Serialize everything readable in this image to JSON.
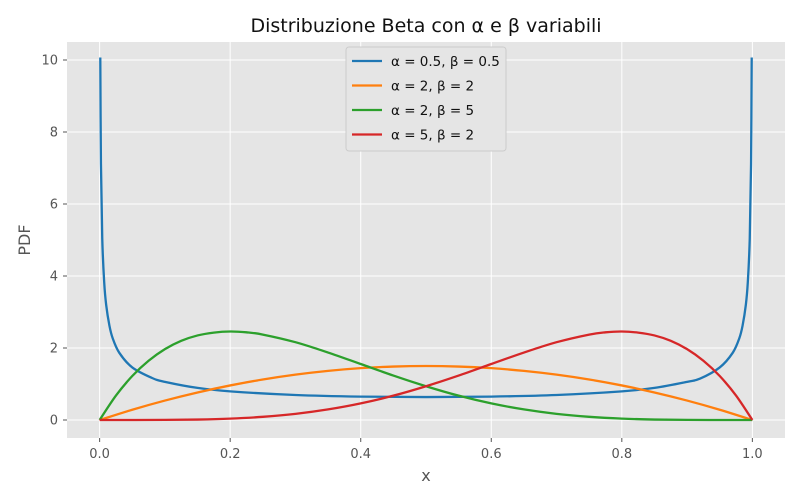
{
  "chart_data": {
    "type": "line",
    "title": "Distribuzione Beta con α e β variabili",
    "xlabel": "x",
    "ylabel": "PDF",
    "xlim": [
      -0.05,
      1.05
    ],
    "ylim": [
      -0.5,
      10.5
    ],
    "xticks": [
      0.0,
      0.2,
      0.4,
      0.6,
      0.8,
      1.0
    ],
    "xtick_labels": [
      "0.0",
      "0.2",
      "0.4",
      "0.6",
      "0.8",
      "1.0"
    ],
    "yticks": [
      0,
      2,
      4,
      6,
      8,
      10
    ],
    "ytick_labels": [
      "0",
      "2",
      "4",
      "6",
      "8",
      "10"
    ],
    "grid": true,
    "legend_position": "top-center",
    "series": [
      {
        "name": "α = 0.5,  β = 0.5",
        "color": "#1f77b4",
        "x": [
          0.001,
          0.002,
          0.004,
          0.007,
          0.01,
          0.015,
          0.02,
          0.03,
          0.05,
          0.08,
          0.1,
          0.15,
          0.2,
          0.3,
          0.4,
          0.5,
          0.6,
          0.7,
          0.8,
          0.85,
          0.9,
          0.92,
          0.95,
          0.97,
          0.98,
          0.985,
          0.99,
          0.993,
          0.996,
          0.998,
          0.999
        ],
        "y": [
          10.07,
          7.12,
          5.04,
          3.82,
          3.2,
          2.62,
          2.27,
          1.87,
          1.46,
          1.17,
          1.06,
          0.891,
          0.796,
          0.695,
          0.65,
          0.637,
          0.65,
          0.695,
          0.796,
          0.891,
          1.06,
          1.15,
          1.46,
          1.87,
          2.27,
          2.62,
          3.2,
          3.82,
          5.04,
          7.12,
          10.07
        ]
      },
      {
        "name": "α = 2,  β = 2",
        "color": "#ff7f0e",
        "x": [
          0.0,
          0.05,
          0.1,
          0.15,
          0.2,
          0.25,
          0.3,
          0.35,
          0.4,
          0.45,
          0.5,
          0.55,
          0.6,
          0.65,
          0.7,
          0.75,
          0.8,
          0.85,
          0.9,
          0.95,
          1.0
        ],
        "y": [
          0.0,
          0.285,
          0.54,
          0.765,
          0.96,
          1.125,
          1.26,
          1.365,
          1.44,
          1.485,
          1.5,
          1.485,
          1.44,
          1.365,
          1.26,
          1.125,
          0.96,
          0.765,
          0.54,
          0.285,
          0.0
        ]
      },
      {
        "name": "α = 2,  β = 5",
        "color": "#2ca02c",
        "x": [
          0.0,
          0.025,
          0.05,
          0.075,
          0.1,
          0.125,
          0.15,
          0.175,
          0.2,
          0.225,
          0.25,
          0.3,
          0.35,
          0.4,
          0.45,
          0.5,
          0.55,
          0.6,
          0.65,
          0.7,
          0.75,
          0.8,
          0.85,
          0.9,
          0.95,
          1.0
        ],
        "y": [
          0.0,
          0.678,
          1.222,
          1.645,
          1.968,
          2.199,
          2.349,
          2.428,
          2.458,
          2.436,
          2.373,
          2.161,
          1.874,
          1.555,
          1.235,
          0.938,
          0.676,
          0.461,
          0.294,
          0.17,
          0.088,
          0.038,
          0.0127,
          0.003,
          0.0002,
          0.0
        ]
      },
      {
        "name": "α = 5,  β = 2",
        "color": "#d62728",
        "x": [
          0.0,
          0.05,
          0.1,
          0.15,
          0.2,
          0.25,
          0.3,
          0.35,
          0.4,
          0.45,
          0.5,
          0.55,
          0.6,
          0.65,
          0.7,
          0.75,
          0.775,
          0.8,
          0.825,
          0.85,
          0.875,
          0.9,
          0.925,
          0.95,
          0.975,
          1.0
        ],
        "y": [
          0.0,
          0.0002,
          0.003,
          0.0127,
          0.038,
          0.088,
          0.17,
          0.294,
          0.461,
          0.676,
          0.938,
          1.235,
          1.555,
          1.874,
          2.161,
          2.373,
          2.436,
          2.458,
          2.428,
          2.349,
          2.199,
          1.968,
          1.645,
          1.222,
          0.678,
          0.0
        ]
      }
    ]
  }
}
